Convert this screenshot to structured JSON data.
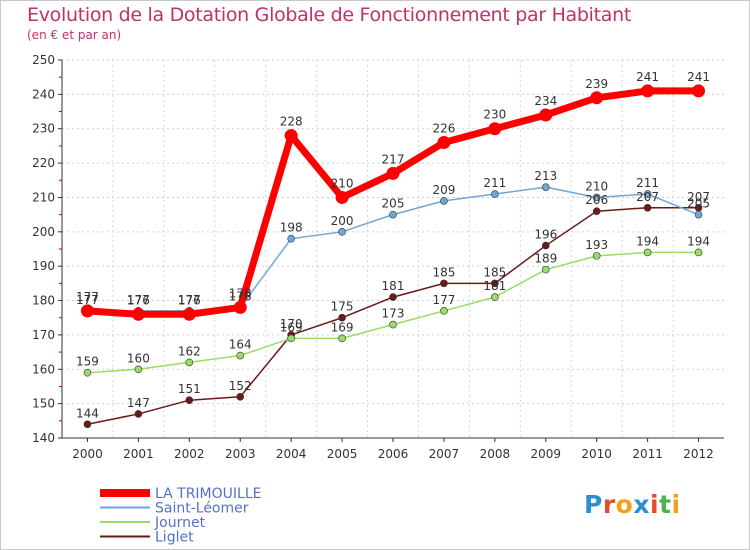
{
  "title": "Evolution de la Dotation Globale de Fonctionnement par Habitant",
  "subtitle": "(en € et par an)",
  "logo": {
    "letters": [
      "P",
      "r",
      "o",
      "x",
      "i",
      "t",
      "i"
    ],
    "colors": [
      "#2d8fd0",
      "#e8492c",
      "#f6a01a",
      "#2d8fd0",
      "#e8492c",
      "#4db34a",
      "#f6a01a"
    ]
  },
  "chart_data": {
    "type": "line",
    "title": "Evolution de la Dotation Globale de Fonctionnement par Habitant",
    "subtitle": "(en € et par an)",
    "xlabel": "",
    "ylabel": "",
    "x": [
      "2000",
      "2001",
      "2002",
      "2003",
      "2004",
      "2005",
      "2006",
      "2007",
      "2008",
      "2009",
      "2010",
      "2011",
      "2012"
    ],
    "ylim": [
      140,
      250
    ],
    "yticks": [
      140,
      150,
      160,
      170,
      180,
      190,
      200,
      210,
      220,
      230,
      240,
      250
    ],
    "grid": true,
    "legend_position": "bottom-left",
    "series": [
      {
        "name": "LA TRIMOUILLE",
        "color": "#ff0000",
        "emphasis": "bold",
        "values": [
          177,
          176,
          176,
          178,
          228,
          210,
          217,
          226,
          230,
          234,
          239,
          241,
          241
        ]
      },
      {
        "name": "Saint-Léomer",
        "color": "#6fa8d6",
        "emphasis": "normal",
        "values": [
          177,
          177,
          177,
          178,
          198,
          200,
          205,
          209,
          211,
          213,
          210,
          211,
          205
        ]
      },
      {
        "name": "Journet",
        "color": "#99dd66",
        "emphasis": "normal",
        "values": [
          159,
          160,
          162,
          164,
          169,
          169,
          173,
          177,
          181,
          189,
          193,
          194,
          194
        ]
      },
      {
        "name": "Liglet",
        "color": "#6b1a1a",
        "emphasis": "normal",
        "values": [
          144,
          147,
          151,
          152,
          170,
          175,
          181,
          185,
          185,
          196,
          206,
          207,
          207
        ]
      }
    ]
  }
}
